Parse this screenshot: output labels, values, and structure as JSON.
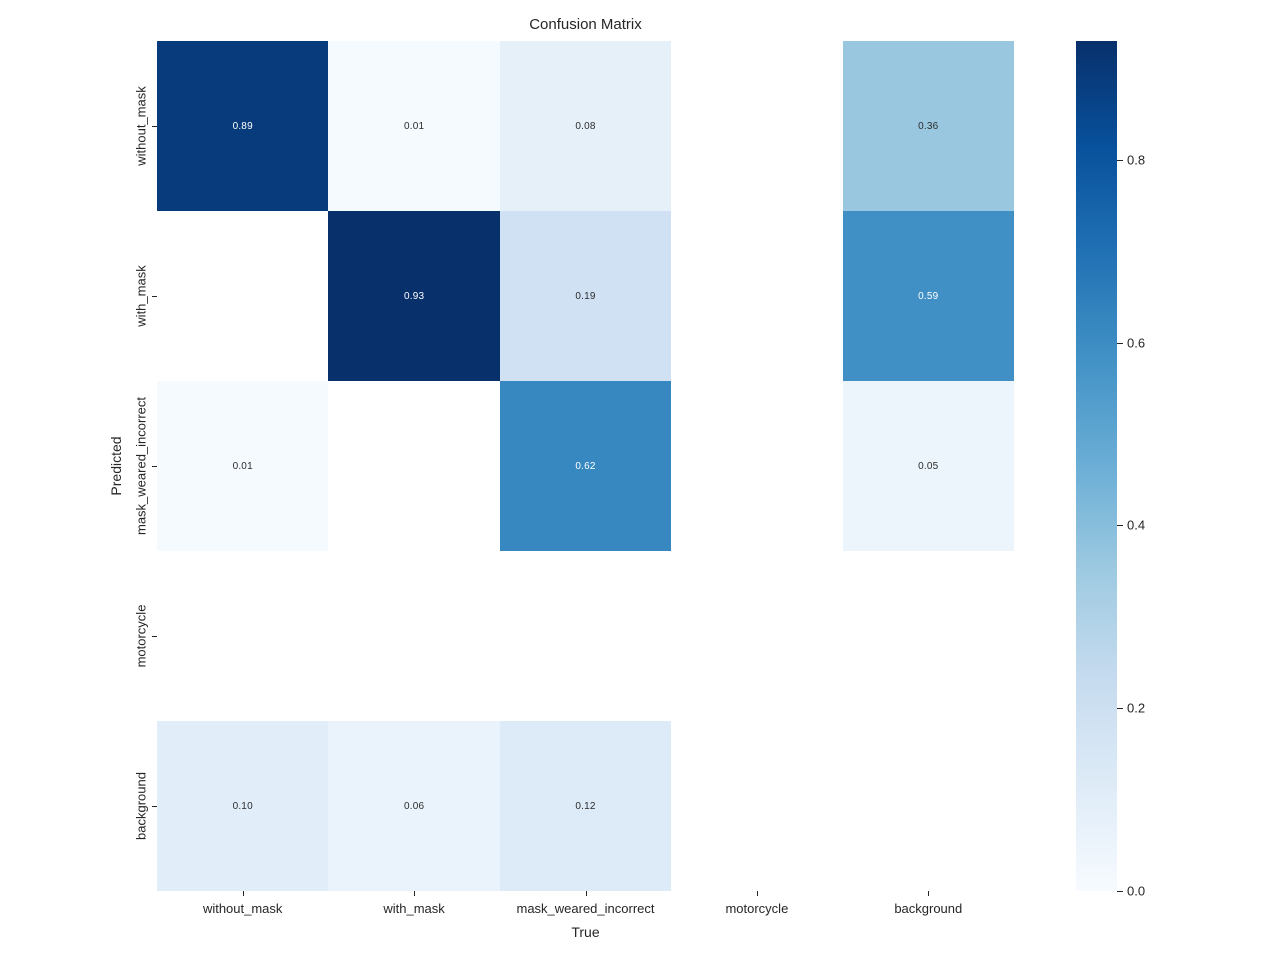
{
  "title": "Confusion Matrix",
  "chart_data": {
    "type": "heatmap",
    "title": "Confusion Matrix",
    "xlabel": "True",
    "ylabel": "Predicted",
    "x_categories": [
      "without_mask",
      "with_mask",
      "mask_weared_incorrect",
      "motorcycle",
      "background"
    ],
    "y_categories": [
      "without_mask",
      "with_mask",
      "mask_weared_incorrect",
      "motorcycle",
      "background"
    ],
    "matrix": [
      [
        0.89,
        0.01,
        0.08,
        null,
        0.36
      ],
      [
        null,
        0.93,
        0.19,
        null,
        0.59
      ],
      [
        0.01,
        null,
        0.62,
        null,
        0.05
      ],
      [
        null,
        null,
        null,
        null,
        null
      ],
      [
        0.1,
        0.06,
        0.12,
        null,
        null
      ]
    ],
    "vmin": 0,
    "vmax": 0.93,
    "colormap": "Blues",
    "colormap_stops": [
      "#f7fbff",
      "#deebf7",
      "#c6dbef",
      "#9ecae1",
      "#6baed6",
      "#4292c6",
      "#2171b5",
      "#08519c",
      "#08306b"
    ],
    "colorbar_ticks": [
      "0.0",
      "0.2",
      "0.4",
      "0.6",
      "0.8"
    ],
    "annotation_text_dark": "#2b2b2b",
    "annotation_text_light": "#ffffff",
    "masked_cell_color": "#ffffff",
    "legend_position": "right",
    "grid": false
  }
}
